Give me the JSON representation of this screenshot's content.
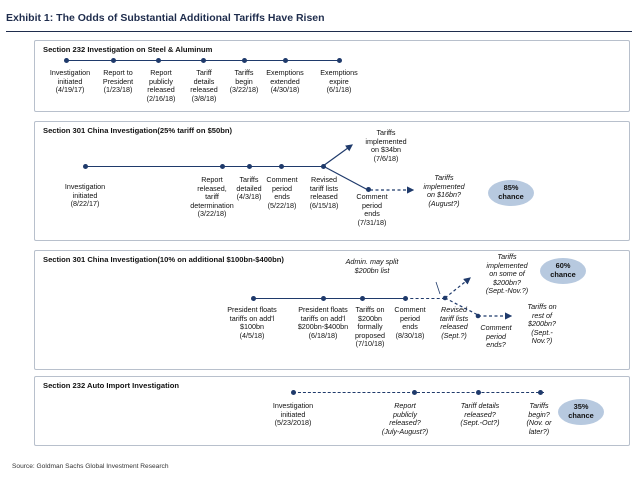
{
  "exhibit": {
    "title": "Exhibit 1: The Odds of Substantial Additional Tariffs Have Risen"
  },
  "panels": [
    {
      "title_lines": [
        "Section 232 Investigation on Steel & Aluminum"
      ],
      "events": [
        {
          "lines": [
            "Investigation",
            "initiated",
            "(4/19/17)"
          ]
        },
        {
          "lines": [
            "Report to",
            "President",
            "(1/23/18)"
          ]
        },
        {
          "lines": [
            "Report",
            "publicly",
            "released",
            "(2/16/18)"
          ]
        },
        {
          "lines": [
            "Tariff",
            "details",
            "released",
            "(3/8/18)"
          ]
        },
        {
          "lines": [
            "Tariffs",
            "begin",
            "(3/22/18)"
          ]
        },
        {
          "lines": [
            "Exemptions",
            "extended",
            "(4/30/18)"
          ]
        },
        {
          "lines": [
            "Exemptions",
            "expire",
            "(6/1/18)"
          ]
        }
      ]
    },
    {
      "title_lines": [
        "Section 301 China Investigation",
        "(25% tariff on $50bn)"
      ],
      "events": [
        {
          "lines": [
            "Investigation",
            "initiated",
            "(8/22/17)"
          ]
        },
        {
          "lines": [
            "Report",
            "released,",
            "tariff",
            "determination",
            "(3/22/18)"
          ]
        },
        {
          "lines": [
            "Tariffs",
            "detailed",
            "(4/3/18)"
          ]
        },
        {
          "lines": [
            "Comment",
            "period",
            "ends",
            "(5/22/18)"
          ]
        },
        {
          "lines": [
            "Revised",
            "tariff lists",
            "released",
            "(6/15/18)"
          ]
        },
        {
          "lines": [
            "Tariffs",
            "implemented",
            "on $34bn",
            "(7/6/18)"
          ]
        },
        {
          "lines": [
            "Comment",
            "period",
            "ends",
            "(7/31/18)"
          ]
        },
        {
          "lines": [
            "Tariffs",
            "implemented",
            "on $16bn?",
            "(August?)"
          ]
        }
      ],
      "badge": {
        "value": "85%",
        "label": "chance"
      }
    },
    {
      "title_lines": [
        "Section 301 China Investigation",
        "(10% on additional $100bn-$400bn)"
      ],
      "events": [
        {
          "lines": [
            "President floats",
            "tariffs on add'l",
            "$100bn",
            "(4/5/18)"
          ]
        },
        {
          "lines": [
            "President floats",
            "tariffs on add'l",
            "$200bn-$400bn",
            "(6/18/18)"
          ]
        },
        {
          "lines": [
            "Tariffs on",
            "$200bn",
            "formally",
            "proposed",
            "(7/10/18)"
          ]
        },
        {
          "lines": [
            "Comment",
            "period",
            "ends",
            "(8/30/18)"
          ]
        },
        {
          "lines": [
            "Admin. may  split",
            "$200bn list"
          ]
        },
        {
          "lines": [
            "Revised",
            "tariff lists",
            "released",
            "(Sept.?)"
          ]
        },
        {
          "lines": [
            "Tariffs",
            "implemented",
            "on some of",
            "$200bn?",
            "(Sept.-Nov.?)"
          ]
        },
        {
          "lines": [
            "Comment",
            "period",
            "ends?"
          ]
        },
        {
          "lines": [
            "Tariffs on",
            "rest of",
            "$200bn?",
            "(Sept.-",
            "Nov.?)"
          ]
        }
      ],
      "badge": {
        "value": "60%",
        "label": "chance"
      }
    },
    {
      "title_lines": [
        "Section 232 Auto Import Investigation"
      ],
      "events": [
        {
          "lines": [
            "Investigation",
            "initiated",
            "(5/23/2018)"
          ]
        },
        {
          "lines": [
            "Report",
            "publicly",
            "released?",
            "(July-August?)"
          ]
        },
        {
          "lines": [
            "Tariff details",
            "released?",
            "(Sept.-Oct?)"
          ]
        },
        {
          "lines": [
            "Tariffs",
            "begin?",
            "(Nov. or",
            "later?)"
          ]
        }
      ],
      "badge": {
        "value": "35%",
        "label": "chance"
      }
    }
  ],
  "source": "Source: Goldman Sachs Global Investment Research",
  "colors": {
    "timeline": "#1f3a6b",
    "badge": "#b7c9df",
    "title": "#1f2d4d"
  }
}
